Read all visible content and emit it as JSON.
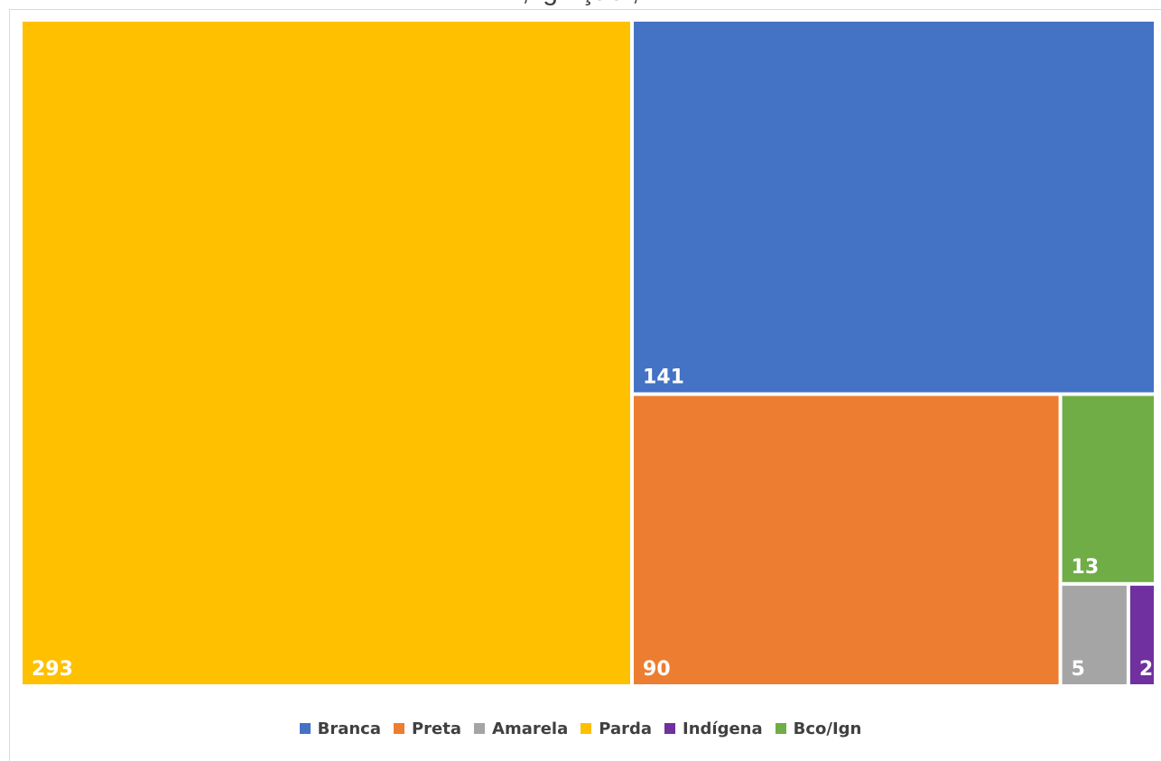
{
  "chart_data": {
    "type": "treemap",
    "title_fragment": ", ign ção ,",
    "items": [
      {
        "name": "Parda",
        "value": 293,
        "label": "293",
        "color": "#FFC000"
      },
      {
        "name": "Branca",
        "value": 141,
        "label": "141",
        "color": "#4472C4"
      },
      {
        "name": "Preta",
        "value": 90,
        "label": "90",
        "color": "#ED7D31"
      },
      {
        "name": "Bco/Ign",
        "value": 13,
        "label": "13",
        "color": "#70AD47"
      },
      {
        "name": "Amarela",
        "value": 5,
        "label": "5",
        "color": "#A5A5A5"
      },
      {
        "name": "Indígena",
        "value": 2,
        "label": "2",
        "color": "#7030A0"
      }
    ],
    "legend": {
      "position": "bottom",
      "entries": [
        {
          "label": "Branca",
          "color": "#4472C4"
        },
        {
          "label": "Preta",
          "color": "#ED7D31"
        },
        {
          "label": "Amarela",
          "color": "#A5A5A5"
        },
        {
          "label": "Parda",
          "color": "#FFC000"
        },
        {
          "label": "Indígena",
          "color": "#7030A0"
        },
        {
          "label": "Bco/Ign",
          "color": "#70AD47"
        }
      ]
    }
  }
}
